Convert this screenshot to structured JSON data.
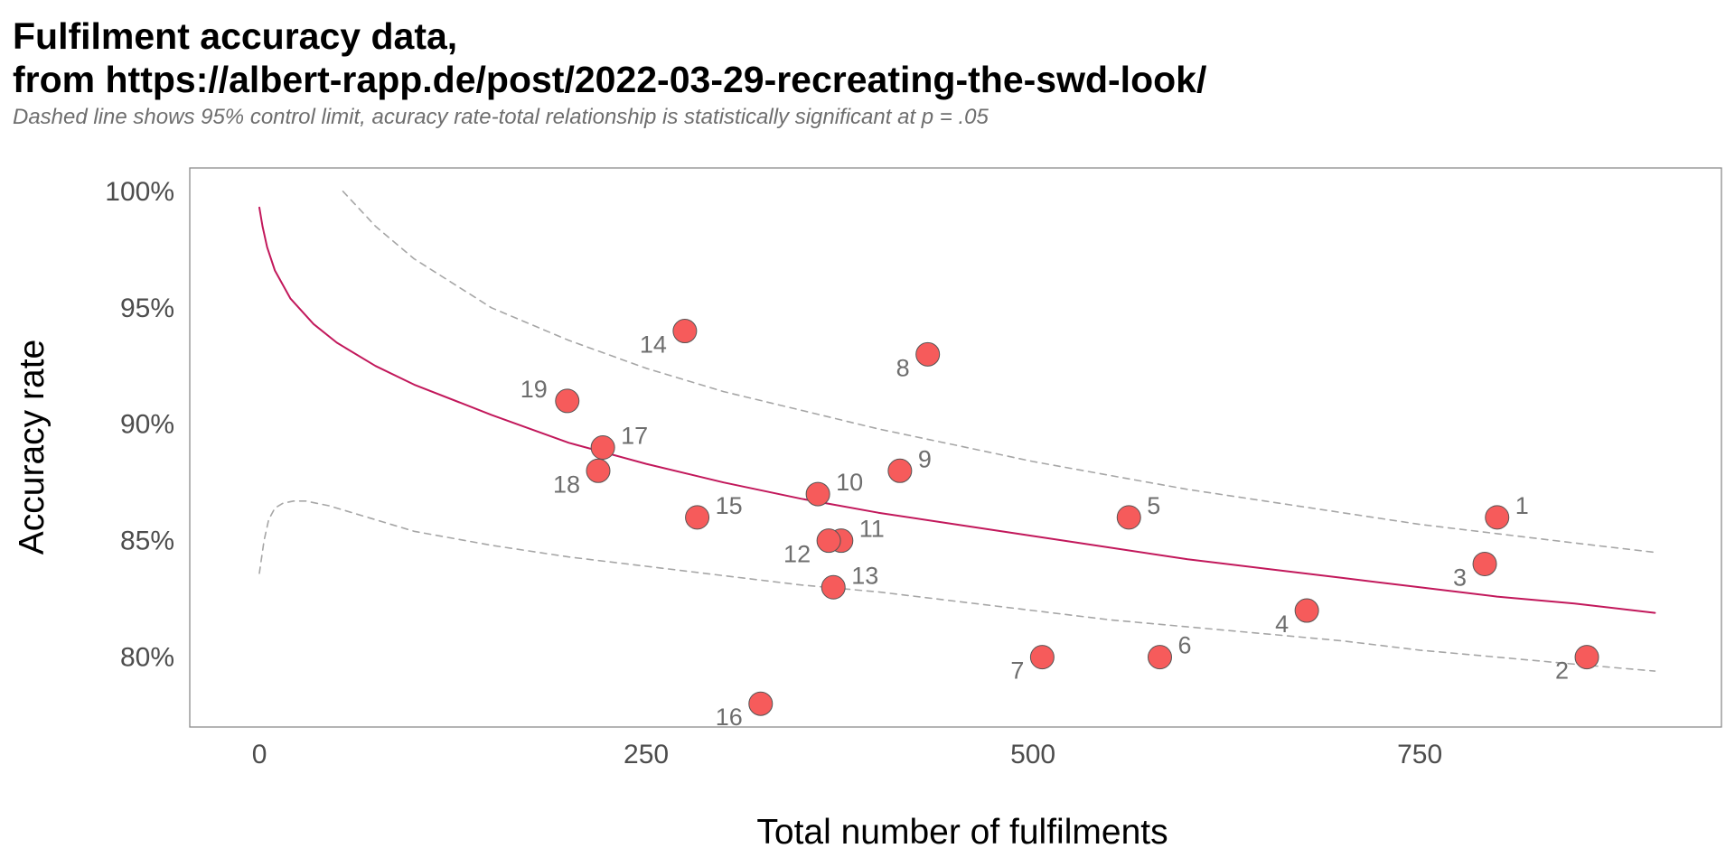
{
  "title_lines": [
    "Fulfilment accuracy data,",
    "from https://albert-rapp.de/post/2022-03-29-recreating-the-swd-look/"
  ],
  "subtitle": "Dashed line shows 95% control limit, acuracy rate-total relationship is statistically significant at p = .05",
  "colors": {
    "point_fill": "#f65b5b",
    "point_stroke": "#555555",
    "trend_line": "#c2185b",
    "limit_line": "#a6a6a6",
    "panel_border": "#8c8c8c"
  },
  "chart_data": {
    "type": "scatter",
    "xlabel": "Total number of fulfilments",
    "ylabel": "Accuracy rate",
    "xlim": [
      -45,
      945
    ],
    "ylim": [
      77.0,
      101.0
    ],
    "x_ticks": [
      0,
      250,
      500,
      750
    ],
    "x_tick_labels": [
      "0",
      "250",
      "500",
      "750"
    ],
    "y_ticks": [
      80,
      85,
      90,
      95,
      100
    ],
    "y_tick_labels": [
      "80%",
      "85%",
      "90%",
      "95%",
      "100%"
    ],
    "grid": false,
    "points": [
      {
        "label": "1",
        "x": 800,
        "y": 86,
        "label_side": "right"
      },
      {
        "label": "2",
        "x": 858,
        "y": 80,
        "label_side": "left-below"
      },
      {
        "label": "3",
        "x": 792,
        "y": 84,
        "label_side": "left-below"
      },
      {
        "label": "4",
        "x": 677,
        "y": 82,
        "label_side": "left-below"
      },
      {
        "label": "5",
        "x": 562,
        "y": 86,
        "label_side": "right"
      },
      {
        "label": "6",
        "x": 582,
        "y": 80,
        "label_side": "right"
      },
      {
        "label": "7",
        "x": 506,
        "y": 80,
        "label_side": "left-below"
      },
      {
        "label": "8",
        "x": 432,
        "y": 93,
        "label_side": "left-below"
      },
      {
        "label": "9",
        "x": 414,
        "y": 88,
        "label_side": "right"
      },
      {
        "label": "10",
        "x": 361,
        "y": 87,
        "label_side": "right"
      },
      {
        "label": "11",
        "x": 376,
        "y": 85,
        "label_side": "right"
      },
      {
        "label": "12",
        "x": 368,
        "y": 85,
        "label_side": "left-below"
      },
      {
        "label": "13",
        "x": 371,
        "y": 83,
        "label_side": "right"
      },
      {
        "label": "14",
        "x": 275,
        "y": 94,
        "label_side": "left-below"
      },
      {
        "label": "15",
        "x": 283,
        "y": 86,
        "label_side": "right"
      },
      {
        "label": "16",
        "x": 324,
        "y": 78,
        "label_side": "left-below"
      },
      {
        "label": "17",
        "x": 222,
        "y": 89,
        "label_side": "right"
      },
      {
        "label": "18",
        "x": 219,
        "y": 88,
        "label_side": "left-below"
      },
      {
        "label": "19",
        "x": 199,
        "y": 91,
        "label_side": "left"
      }
    ],
    "trend_line": {
      "x": [
        0,
        2,
        5,
        10,
        20,
        35,
        50,
        75,
        100,
        150,
        200,
        250,
        300,
        350,
        400,
        450,
        500,
        550,
        600,
        650,
        700,
        750,
        800,
        850,
        902
      ],
      "y": [
        99.3,
        98.5,
        97.6,
        96.6,
        95.4,
        94.3,
        93.5,
        92.5,
        91.7,
        90.4,
        89.2,
        88.3,
        87.5,
        86.8,
        86.2,
        85.7,
        85.2,
        84.7,
        84.2,
        83.8,
        83.4,
        83.0,
        82.6,
        82.3,
        81.9
      ]
    },
    "upper_limit": {
      "x": [
        54,
        75,
        100,
        150,
        200,
        250,
        300,
        350,
        400,
        450,
        500,
        550,
        600,
        650,
        700,
        750,
        800,
        850,
        902
      ],
      "y": [
        100.0,
        98.5,
        97.1,
        95.0,
        93.6,
        92.4,
        91.4,
        90.6,
        89.8,
        89.1,
        88.4,
        87.8,
        87.2,
        86.7,
        86.2,
        85.7,
        85.3,
        84.9,
        84.5
      ]
    },
    "lower_limit": {
      "x": [
        0,
        3,
        6,
        10,
        15,
        22,
        30,
        45,
        60,
        80,
        100,
        150,
        200,
        250,
        300,
        350,
        400,
        450,
        500,
        550,
        600,
        650,
        700,
        750,
        800,
        850,
        902
      ],
      "y": [
        83.6,
        85.0,
        85.9,
        86.4,
        86.6,
        86.7,
        86.7,
        86.5,
        86.2,
        85.8,
        85.4,
        84.8,
        84.3,
        83.9,
        83.5,
        83.1,
        82.8,
        82.4,
        82.0,
        81.6,
        81.3,
        81.0,
        80.7,
        80.3,
        80.0,
        79.7,
        79.4
      ]
    }
  }
}
